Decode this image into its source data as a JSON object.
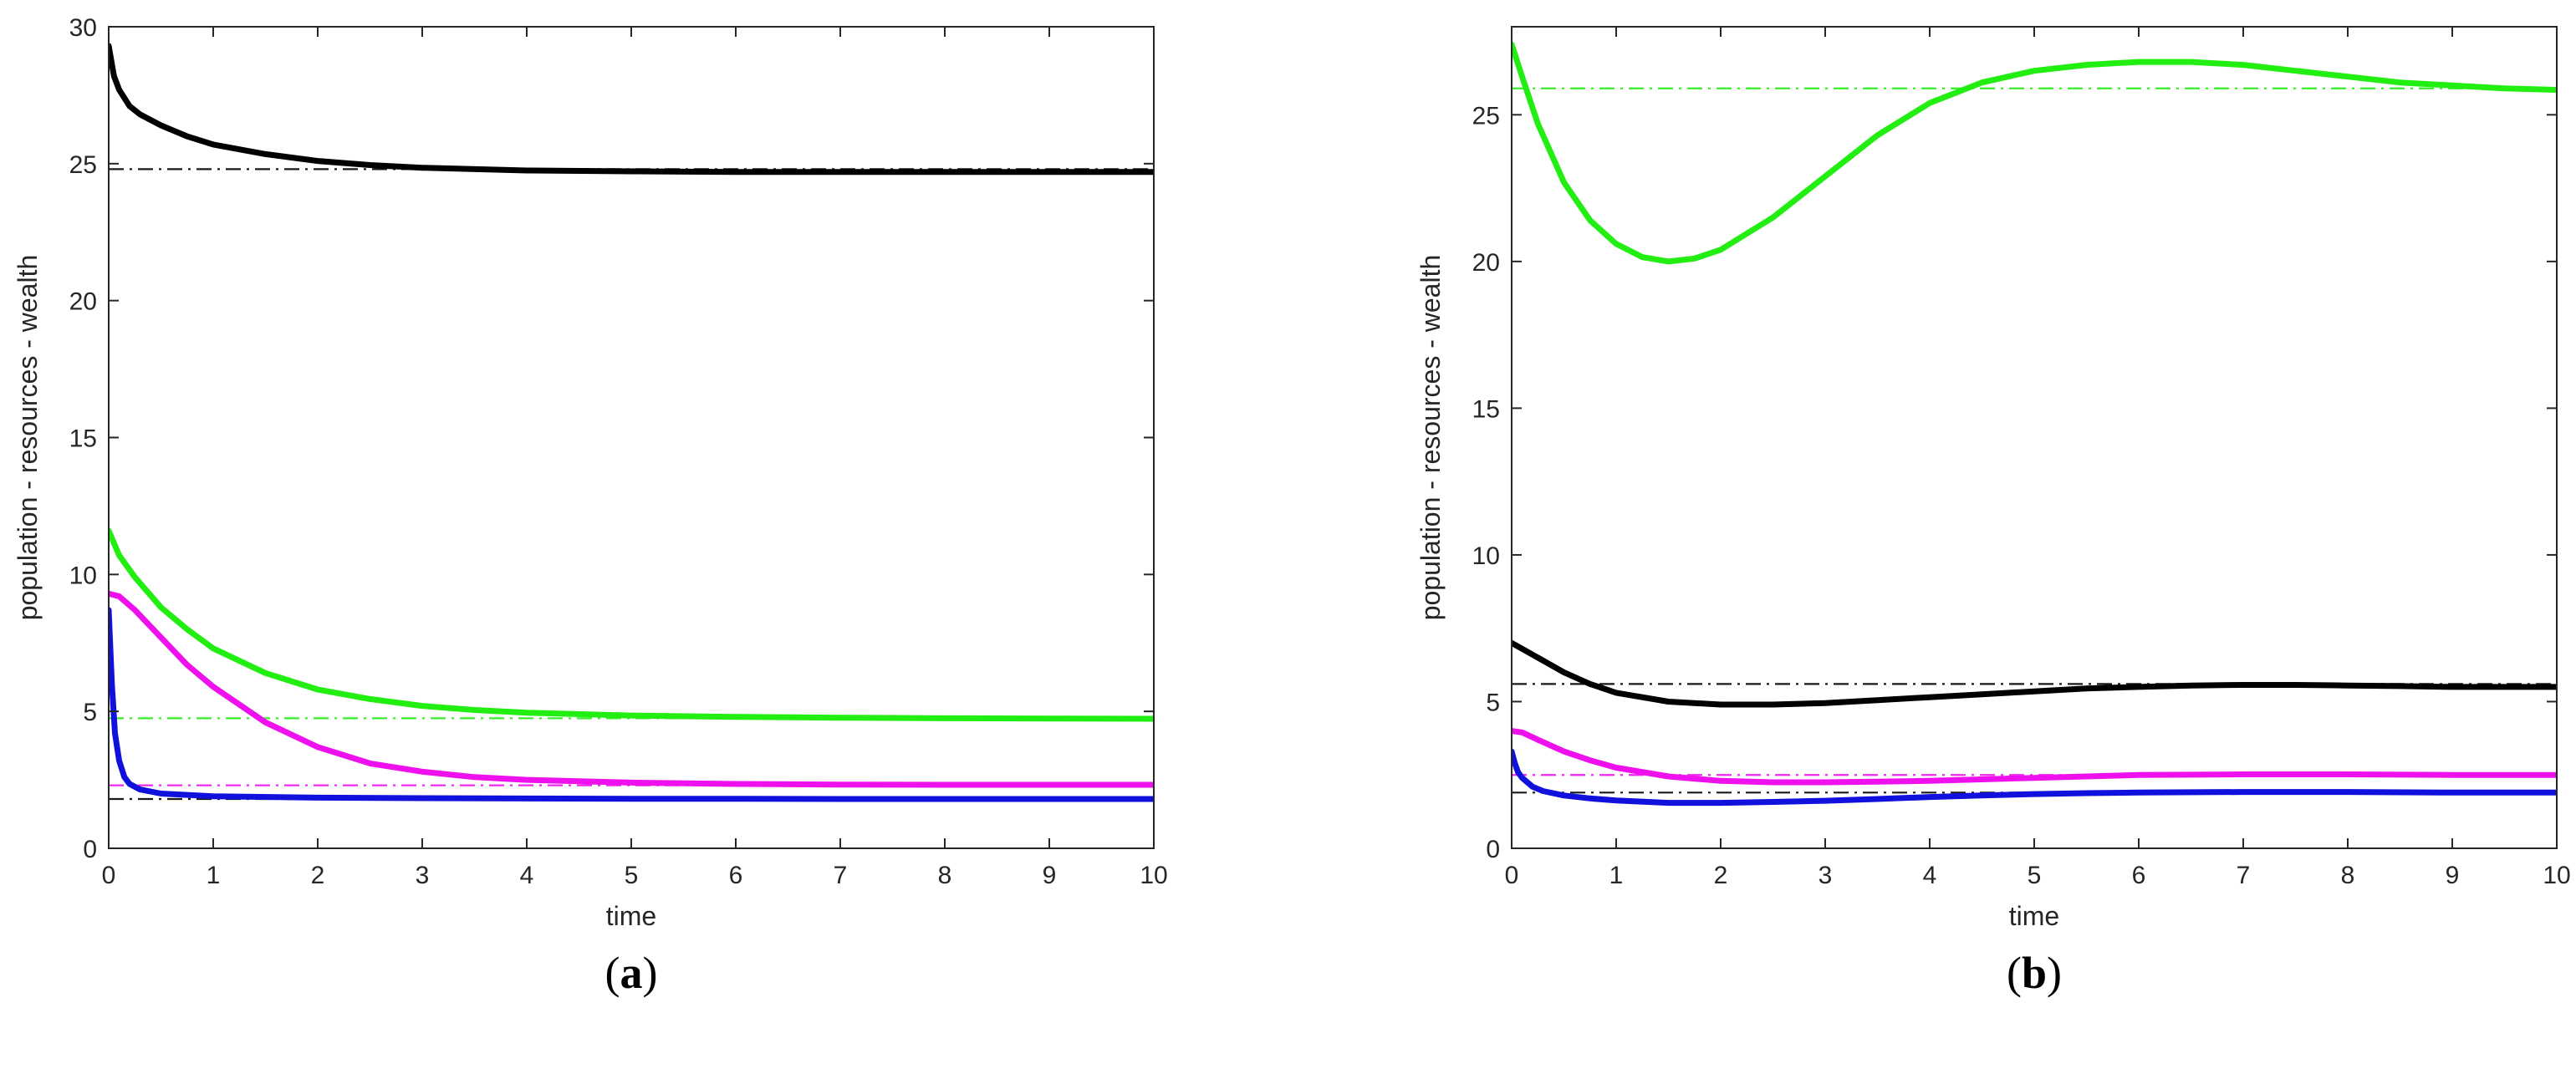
{
  "colors": {
    "black": "#000000",
    "green": "#22ee11",
    "magenta": "#ee11ee",
    "blue": "#1111dd",
    "axis": "#262626",
    "equilibrium_black": "#000000"
  },
  "chart_data": [
    {
      "type": "line",
      "panel_label_open": "(",
      "panel_label_letter": "a",
      "panel_label_close": ")",
      "xlabel": "time",
      "ylabel": "population - resources - wealth",
      "xlim": [
        0,
        10
      ],
      "ylim": [
        0,
        30
      ],
      "xticks": [
        0,
        1,
        2,
        3,
        4,
        5,
        6,
        7,
        8,
        9,
        10
      ],
      "yticks": [
        0,
        5,
        10,
        15,
        20,
        25,
        30
      ],
      "series": [
        {
          "name": "black",
          "color": "#000000",
          "style": "solid",
          "x": [
            0,
            0.05,
            0.1,
            0.2,
            0.3,
            0.5,
            0.75,
            1,
            1.5,
            2,
            2.5,
            3,
            4,
            5,
            6,
            7,
            8,
            9,
            10
          ],
          "y": [
            29.3,
            28.2,
            27.7,
            27.1,
            26.8,
            26.4,
            26.0,
            25.7,
            25.35,
            25.1,
            24.95,
            24.85,
            24.75,
            24.72,
            24.7,
            24.7,
            24.7,
            24.7,
            24.7
          ]
        },
        {
          "name": "green",
          "color": "#22ee11",
          "style": "solid",
          "x": [
            0,
            0.1,
            0.25,
            0.5,
            0.75,
            1,
            1.5,
            2,
            2.5,
            3,
            3.5,
            4,
            5,
            6,
            7,
            8,
            9,
            10
          ],
          "y": [
            11.6,
            10.7,
            9.9,
            8.8,
            8.0,
            7.3,
            6.4,
            5.8,
            5.45,
            5.2,
            5.05,
            4.95,
            4.85,
            4.8,
            4.77,
            4.75,
            4.74,
            4.73
          ]
        },
        {
          "name": "magenta",
          "color": "#ee11ee",
          "style": "solid",
          "x": [
            0,
            0.1,
            0.25,
            0.5,
            0.75,
            1,
            1.5,
            2,
            2.5,
            3,
            3.5,
            4,
            5,
            6,
            7,
            8,
            9,
            10
          ],
          "y": [
            9.3,
            9.2,
            8.7,
            7.7,
            6.7,
            5.9,
            4.6,
            3.7,
            3.1,
            2.8,
            2.6,
            2.5,
            2.4,
            2.35,
            2.33,
            2.32,
            2.32,
            2.32
          ]
        },
        {
          "name": "blue",
          "color": "#1111dd",
          "style": "solid",
          "x": [
            0,
            0.03,
            0.06,
            0.1,
            0.15,
            0.2,
            0.3,
            0.5,
            1,
            2,
            3,
            4,
            5,
            6,
            7,
            8,
            9,
            10
          ],
          "y": [
            8.7,
            6.0,
            4.2,
            3.2,
            2.6,
            2.35,
            2.15,
            2.0,
            1.9,
            1.85,
            1.83,
            1.82,
            1.81,
            1.81,
            1.8,
            1.8,
            1.8,
            1.8
          ]
        }
      ],
      "equilibria": [
        {
          "name": "black-equilibrium",
          "color": "#000000",
          "y": 24.8
        },
        {
          "name": "green-equilibrium",
          "color": "#22ee11",
          "y": 4.75
        },
        {
          "name": "magenta-equilibrium",
          "color": "#ee11ee",
          "y": 2.3
        },
        {
          "name": "blue-equilibrium",
          "color": "#000000",
          "y": 1.8
        }
      ]
    },
    {
      "type": "line",
      "panel_label_open": "(",
      "panel_label_letter": "b",
      "panel_label_close": ")",
      "xlabel": "time",
      "ylabel": "population - resources - wealth",
      "xlim": [
        0,
        10
      ],
      "ylim": [
        0,
        28
      ],
      "xticks": [
        0,
        1,
        2,
        3,
        4,
        5,
        6,
        7,
        8,
        9,
        10
      ],
      "yticks": [
        0,
        5,
        10,
        15,
        20,
        25
      ],
      "series": [
        {
          "name": "green",
          "color": "#22ee11",
          "style": "solid",
          "x": [
            0,
            0.1,
            0.25,
            0.5,
            0.75,
            1,
            1.25,
            1.5,
            1.75,
            2,
            2.5,
            3,
            3.5,
            4,
            4.5,
            5,
            5.5,
            6,
            6.5,
            7,
            7.5,
            8,
            8.5,
            9,
            9.5,
            10
          ],
          "y": [
            27.4,
            26.3,
            24.7,
            22.7,
            21.4,
            20.6,
            20.15,
            20.0,
            20.1,
            20.4,
            21.5,
            22.9,
            24.3,
            25.4,
            26.1,
            26.5,
            26.7,
            26.8,
            26.8,
            26.7,
            26.5,
            26.3,
            26.1,
            26.0,
            25.9,
            25.85
          ]
        },
        {
          "name": "black",
          "color": "#000000",
          "style": "solid",
          "x": [
            0,
            0.25,
            0.5,
            0.75,
            1,
            1.5,
            2,
            2.5,
            3,
            3.5,
            4,
            4.5,
            5,
            5.5,
            6,
            6.5,
            7,
            7.5,
            8,
            8.5,
            9,
            9.5,
            10
          ],
          "y": [
            7.0,
            6.5,
            6.0,
            5.6,
            5.3,
            5.0,
            4.9,
            4.9,
            4.95,
            5.05,
            5.15,
            5.25,
            5.35,
            5.45,
            5.5,
            5.55,
            5.57,
            5.57,
            5.55,
            5.53,
            5.5,
            5.5,
            5.5
          ]
        },
        {
          "name": "magenta",
          "color": "#ee11ee",
          "style": "solid",
          "x": [
            0,
            0.1,
            0.25,
            0.5,
            0.75,
            1,
            1.5,
            2,
            2.5,
            3,
            3.5,
            4,
            4.5,
            5,
            5.5,
            6,
            7,
            8,
            9,
            10
          ],
          "y": [
            4.0,
            3.95,
            3.7,
            3.3,
            3.0,
            2.75,
            2.45,
            2.3,
            2.25,
            2.25,
            2.27,
            2.3,
            2.35,
            2.4,
            2.45,
            2.5,
            2.52,
            2.52,
            2.5,
            2.5
          ]
        },
        {
          "name": "blue",
          "color": "#1111dd",
          "style": "solid",
          "x": [
            0,
            0.03,
            0.06,
            0.1,
            0.2,
            0.3,
            0.5,
            0.75,
            1,
            1.5,
            2,
            2.5,
            3,
            3.5,
            4,
            4.5,
            5,
            5.5,
            6,
            7,
            8,
            9,
            10
          ],
          "y": [
            3.3,
            2.9,
            2.6,
            2.4,
            2.1,
            1.95,
            1.8,
            1.7,
            1.63,
            1.55,
            1.55,
            1.58,
            1.62,
            1.68,
            1.75,
            1.8,
            1.85,
            1.88,
            1.9,
            1.92,
            1.92,
            1.9,
            1.9
          ]
        }
      ],
      "equilibria": [
        {
          "name": "green-equilibrium",
          "color": "#22ee11",
          "y": 25.9
        },
        {
          "name": "black-equilibrium",
          "color": "#000000",
          "y": 5.6
        },
        {
          "name": "magenta-equilibrium",
          "color": "#ee11ee",
          "y": 2.5
        },
        {
          "name": "blue-equilibrium",
          "color": "#000000",
          "y": 1.9
        }
      ]
    }
  ]
}
